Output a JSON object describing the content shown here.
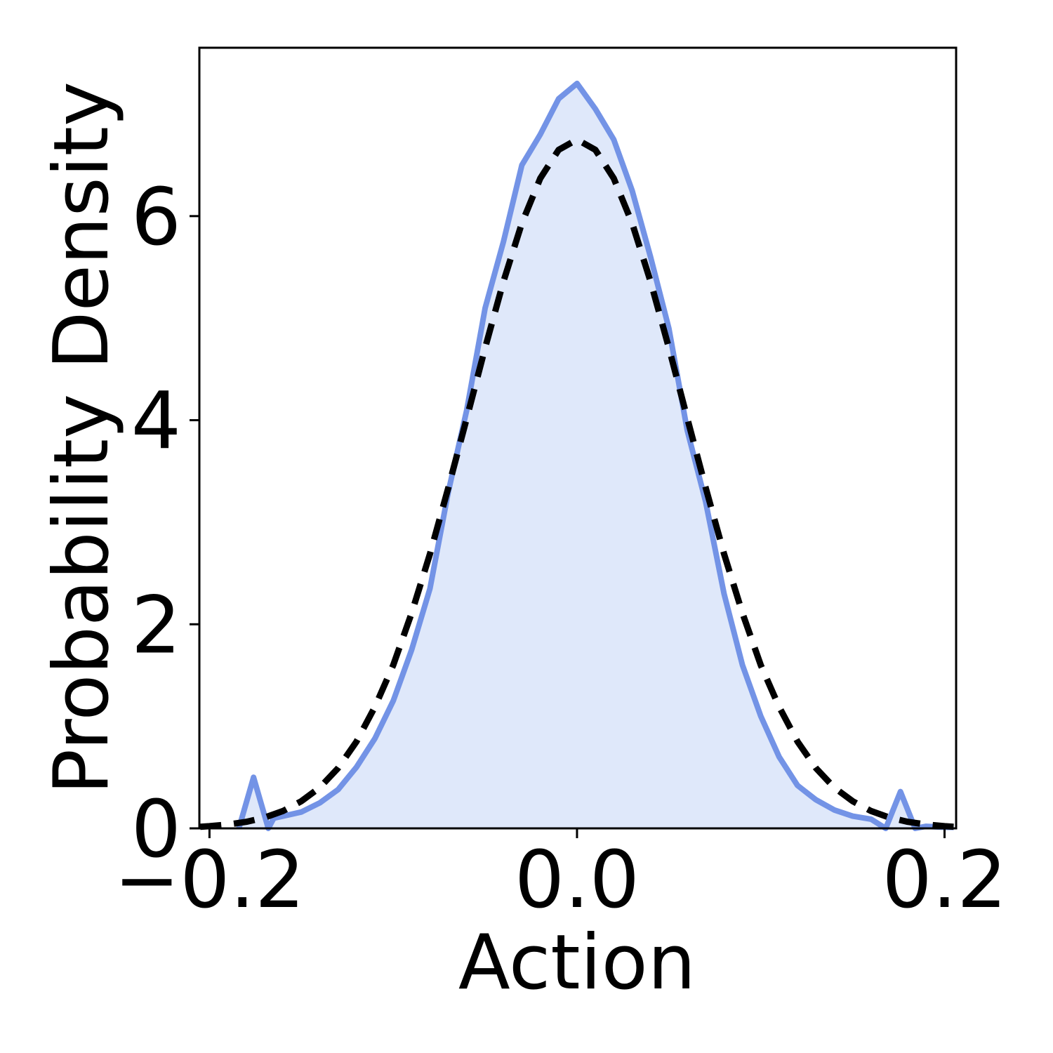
{
  "chart_data": {
    "type": "line",
    "xlabel": "Action",
    "ylabel": "Probability Density",
    "xlim": [
      -0.2055,
      0.2063
    ],
    "ylim": [
      0,
      7.65
    ],
    "xticks": [
      {
        "value": -0.2,
        "label": "−0.2"
      },
      {
        "value": 0,
        "label": "0.0"
      },
      0.2
    ],
    "yticks": [
      0,
      2,
      4,
      6
    ],
    "series": [
      {
        "fill": "#dfe8fa",
        "color": "#7393e6",
        "dashed": false,
        "x": [
          -0.184,
          -0.176,
          -0.168,
          -0.165,
          -0.16,
          -0.15,
          -0.14,
          -0.13,
          -0.12,
          -0.11,
          -0.1,
          -0.09,
          -0.08,
          -0.07,
          -0.06,
          -0.05,
          -0.04,
          -0.03,
          -0.02,
          -0.01,
          0,
          0.01,
          0.02,
          0.03,
          0.04,
          0.05,
          0.06,
          0.07,
          0.08,
          0.09,
          0.1,
          0.11,
          0.12,
          0.13,
          0.14,
          0.15,
          0.16,
          0.168,
          0.176,
          0.184,
          0.19,
          0.2,
          0.205
        ],
        "values": [
          0,
          0.5,
          0,
          0.1,
          0.12,
          0.16,
          0.25,
          0.38,
          0.6,
          0.88,
          1.25,
          1.75,
          2.35,
          3.3,
          4.1,
          5.1,
          5.75,
          6.5,
          6.8,
          7.15,
          7.3,
          7.05,
          6.75,
          6.25,
          5.6,
          4.9,
          3.9,
          3.2,
          2.3,
          1.6,
          1.1,
          0.7,
          0.42,
          0.28,
          0.18,
          0.12,
          0.09,
          0,
          0.36,
          0,
          0.02,
          0.01,
          0.01
        ]
      },
      {
        "color": "#000000",
        "dashed": true,
        "x": [
          -0.205,
          -0.2,
          -0.19,
          -0.18,
          -0.17,
          -0.16,
          -0.15,
          -0.14,
          -0.13,
          -0.12,
          -0.11,
          -0.1,
          -0.09,
          -0.08,
          -0.07,
          -0.06,
          -0.05,
          -0.04,
          -0.03,
          -0.02,
          -0.01,
          0,
          0.01,
          0.02,
          0.03,
          0.04,
          0.05,
          0.06,
          0.07,
          0.08,
          0.09,
          0.1,
          0.11,
          0.12,
          0.13,
          0.14,
          0.15,
          0.16,
          0.17,
          0.18,
          0.19,
          0.2,
          0.205
        ],
        "values": [
          0.016,
          0.021,
          0.038,
          0.064,
          0.106,
          0.17,
          0.266,
          0.4,
          0.59,
          0.85,
          1.19,
          1.6,
          2.11,
          2.69,
          3.34,
          4.02,
          4.71,
          5.36,
          5.93,
          6.37,
          6.65,
          6.75,
          6.65,
          6.37,
          5.93,
          5.36,
          4.71,
          4.02,
          3.34,
          2.69,
          2.11,
          1.6,
          1.19,
          0.85,
          0.59,
          0.4,
          0.266,
          0.17,
          0.106,
          0.064,
          0.038,
          0.021,
          0.016
        ]
      }
    ]
  }
}
